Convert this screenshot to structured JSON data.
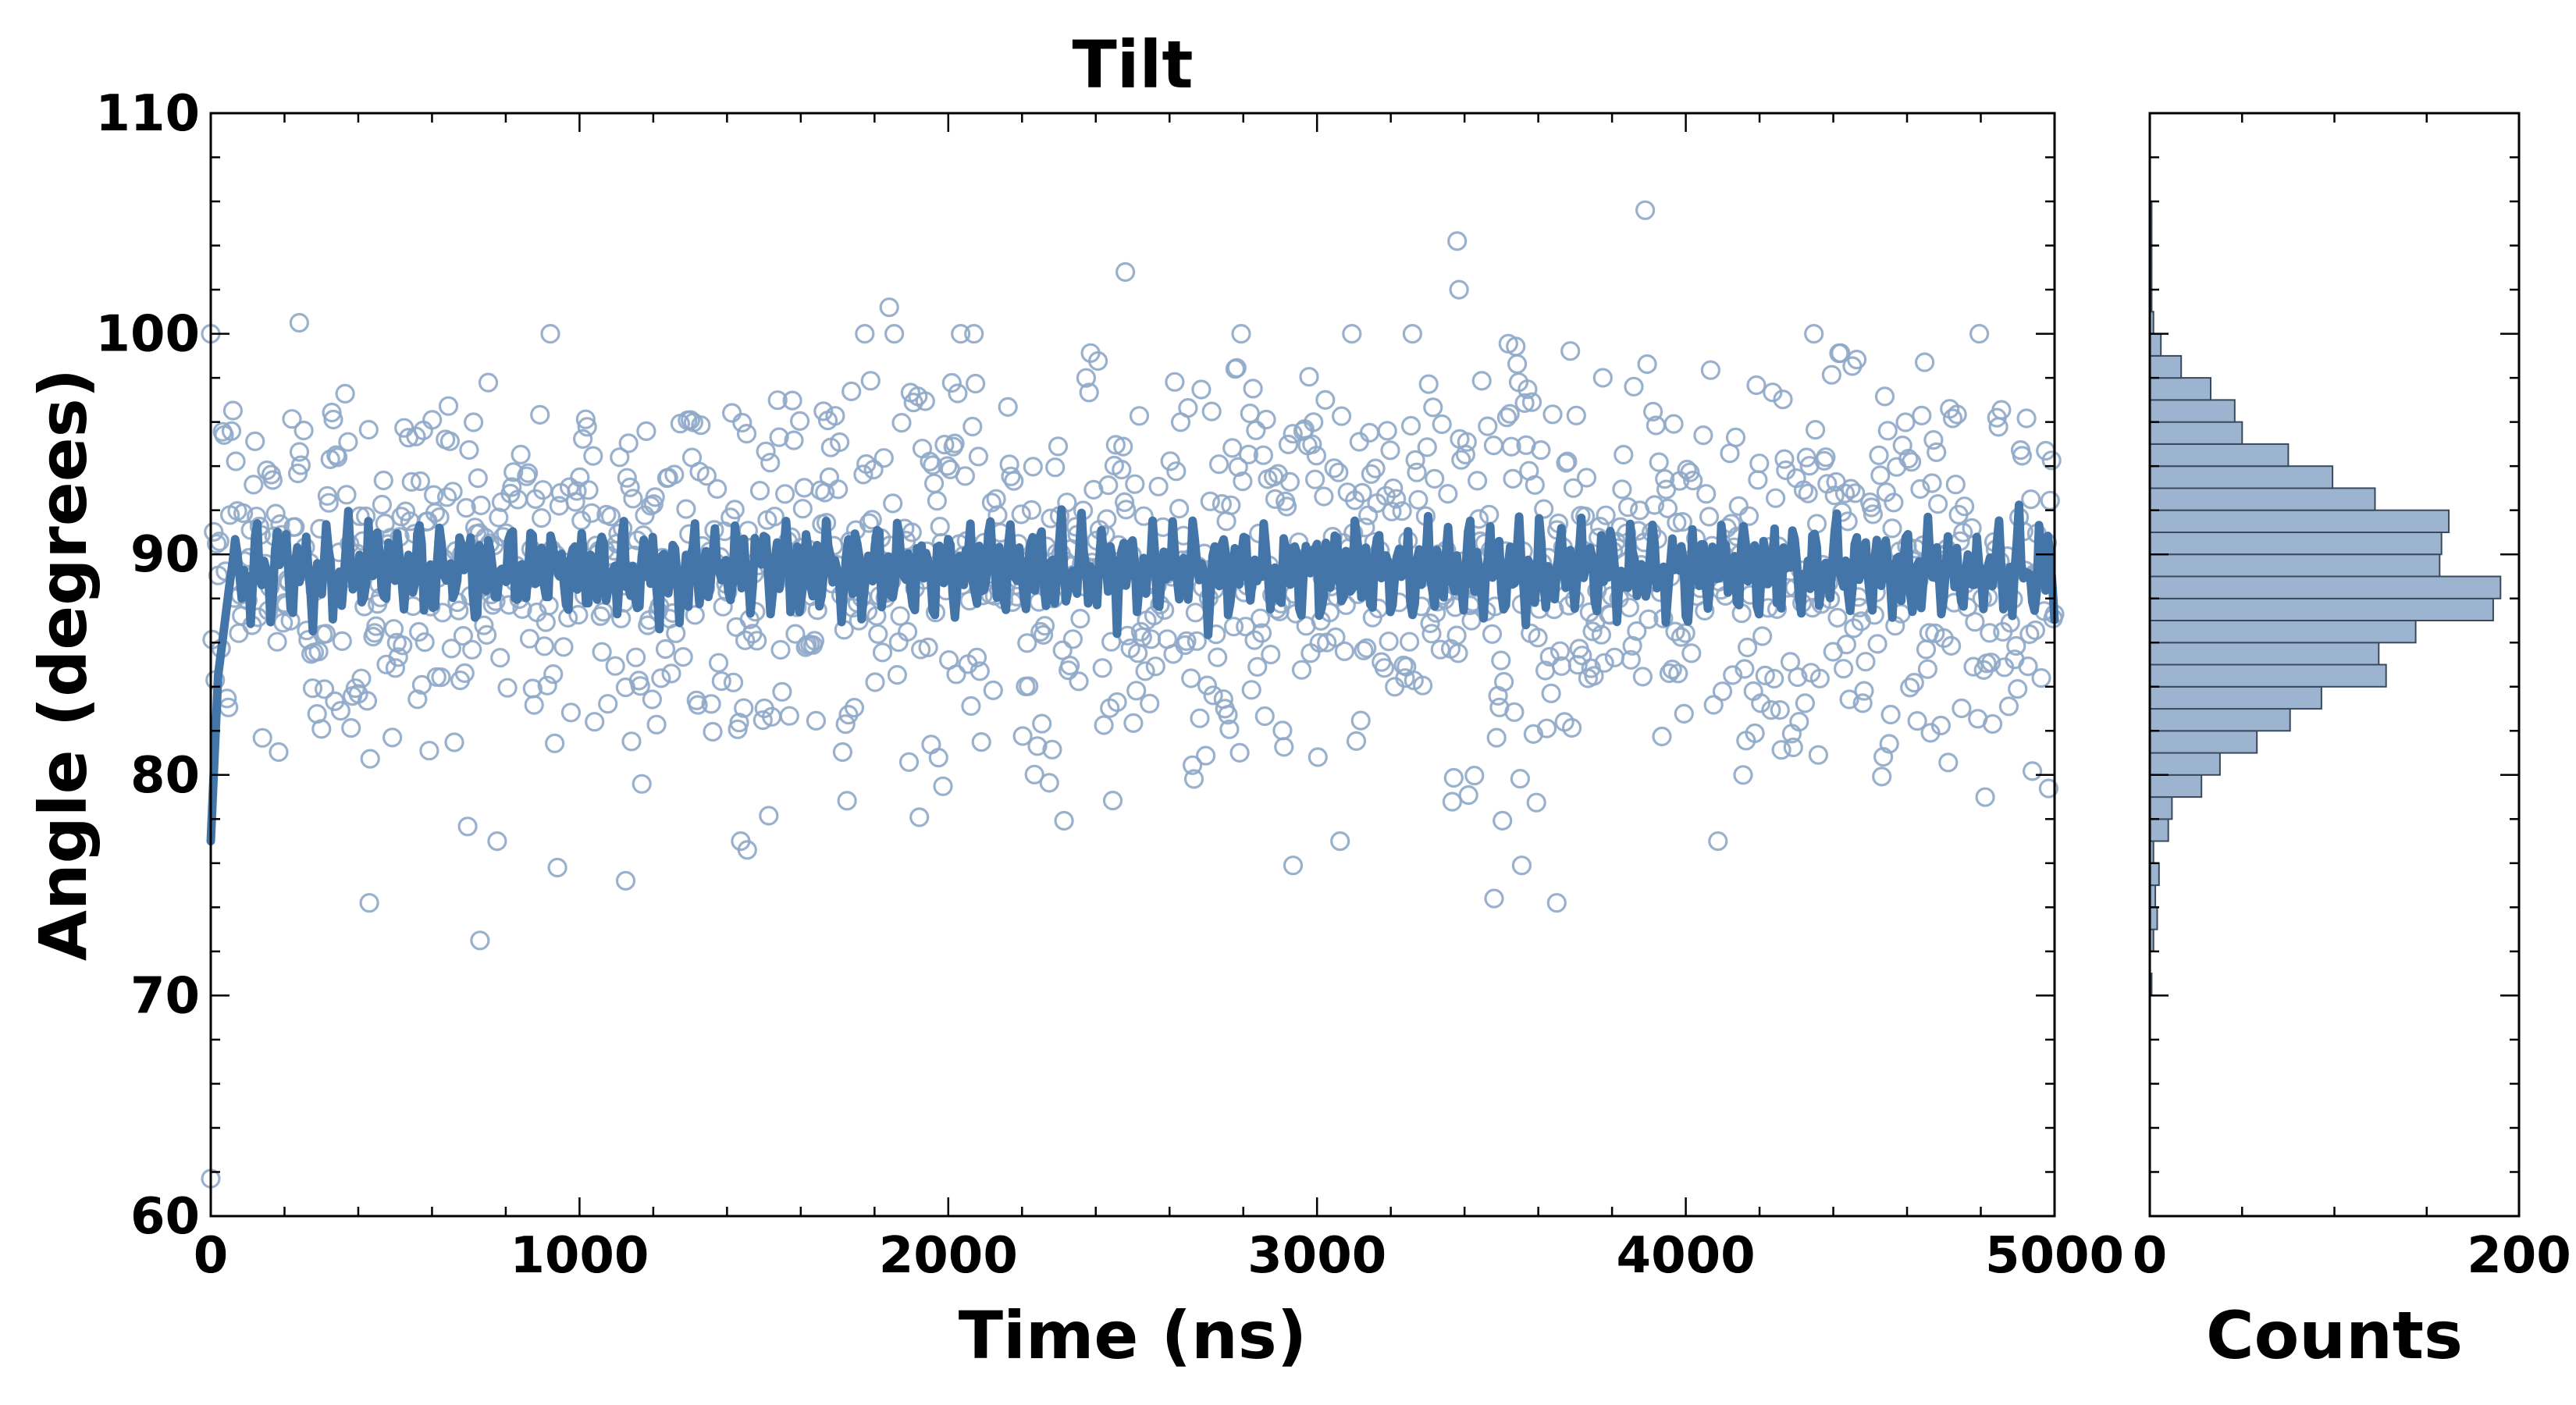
{
  "chart_data": [
    {
      "type": "scatter",
      "title": "Tilt",
      "xlabel": "Time (ns)",
      "ylabel": "Angle (degrees)",
      "xlim": [
        0,
        5000
      ],
      "ylim": [
        60,
        110
      ],
      "xticks": [
        "0",
        "1000",
        "2000",
        "3000",
        "4000",
        "5000"
      ],
      "yticks": [
        "60",
        "70",
        "80",
        "90",
        "100",
        "110"
      ],
      "grid": false,
      "series": [
        {
          "kind": "scatter",
          "marker": "hollow-circle",
          "color": "#8fa9c8",
          "count": 1250,
          "distribution": {
            "mean": 89.5,
            "std": 4.6
          },
          "outliers": [
            {
              "x": 0,
              "y": 61.7
            },
            {
              "x": 430,
              "y": 74.2
            },
            {
              "x": 730,
              "y": 72.5
            },
            {
              "x": 940,
              "y": 75.8
            },
            {
              "x": 1125,
              "y": 75.2
            },
            {
              "x": 1455,
              "y": 76.6
            },
            {
              "x": 2935,
              "y": 75.9
            },
            {
              "x": 3480,
              "y": 74.4
            },
            {
              "x": 3555,
              "y": 75.9
            },
            {
              "x": 3650,
              "y": 74.2
            },
            {
              "x": 2480,
              "y": 102.8
            },
            {
              "x": 3380,
              "y": 104.2
            },
            {
              "x": 3385,
              "y": 102.0
            },
            {
              "x": 3890,
              "y": 105.6
            },
            {
              "x": 1840,
              "y": 101.2
            },
            {
              "x": 240,
              "y": 100.5
            }
          ]
        },
        {
          "kind": "line",
          "color": "#4475a8",
          "description_points": [
            {
              "x": 0,
              "y": 77.0
            },
            {
              "x": 20,
              "y": 84.5
            },
            {
              "x": 50,
              "y": 88.5
            }
          ],
          "mean": 89.3,
          "amplitude": 3.0
        }
      ]
    },
    {
      "type": "bar",
      "orientation": "horizontal",
      "xlabel": "Counts",
      "xlim": [
        0,
        200
      ],
      "xticks": [
        "0",
        "200"
      ],
      "color": "#9db4d0",
      "edgecolor": "#3a4a5c",
      "bins": [
        {
          "y0": 70.0,
          "y1": 71.0,
          "count": 1
        },
        {
          "y0": 71.0,
          "y1": 72.0,
          "count": 0
        },
        {
          "y0": 72.0,
          "y1": 73.0,
          "count": 2
        },
        {
          "y0": 73.0,
          "y1": 74.0,
          "count": 4
        },
        {
          "y0": 74.0,
          "y1": 75.0,
          "count": 3
        },
        {
          "y0": 75.0,
          "y1": 76.0,
          "count": 5
        },
        {
          "y0": 76.0,
          "y1": 77.0,
          "count": 2
        },
        {
          "y0": 77.0,
          "y1": 78.0,
          "count": 10
        },
        {
          "y0": 78.0,
          "y1": 79.0,
          "count": 12
        },
        {
          "y0": 79.0,
          "y1": 80.0,
          "count": 28
        },
        {
          "y0": 80.0,
          "y1": 81.0,
          "count": 38
        },
        {
          "y0": 81.0,
          "y1": 82.0,
          "count": 58
        },
        {
          "y0": 82.0,
          "y1": 83.0,
          "count": 76
        },
        {
          "y0": 83.0,
          "y1": 84.0,
          "count": 93
        },
        {
          "y0": 84.0,
          "y1": 85.0,
          "count": 128
        },
        {
          "y0": 85.0,
          "y1": 86.0,
          "count": 124
        },
        {
          "y0": 86.0,
          "y1": 87.0,
          "count": 144
        },
        {
          "y0": 87.0,
          "y1": 88.0,
          "count": 186
        },
        {
          "y0": 88.0,
          "y1": 89.0,
          "count": 190
        },
        {
          "y0": 89.0,
          "y1": 90.0,
          "count": 157
        },
        {
          "y0": 90.0,
          "y1": 91.0,
          "count": 158
        },
        {
          "y0": 91.0,
          "y1": 92.0,
          "count": 162
        },
        {
          "y0": 92.0,
          "y1": 93.0,
          "count": 122
        },
        {
          "y0": 93.0,
          "y1": 94.0,
          "count": 99
        },
        {
          "y0": 94.0,
          "y1": 95.0,
          "count": 75
        },
        {
          "y0": 95.0,
          "y1": 96.0,
          "count": 50
        },
        {
          "y0": 96.0,
          "y1": 97.0,
          "count": 46
        },
        {
          "y0": 97.0,
          "y1": 98.0,
          "count": 33
        },
        {
          "y0": 98.0,
          "y1": 99.0,
          "count": 17
        },
        {
          "y0": 99.0,
          "y1": 100.0,
          "count": 6
        },
        {
          "y0": 100.0,
          "y1": 101.0,
          "count": 2
        },
        {
          "y0": 101.0,
          "y1": 102.0,
          "count": 1
        },
        {
          "y0": 102.0,
          "y1": 103.0,
          "count": 1
        },
        {
          "y0": 103.0,
          "y1": 104.0,
          "count": 1
        },
        {
          "y0": 104.0,
          "y1": 105.0,
          "count": 1
        },
        {
          "y0": 105.0,
          "y1": 106.0,
          "count": 1
        }
      ]
    }
  ]
}
